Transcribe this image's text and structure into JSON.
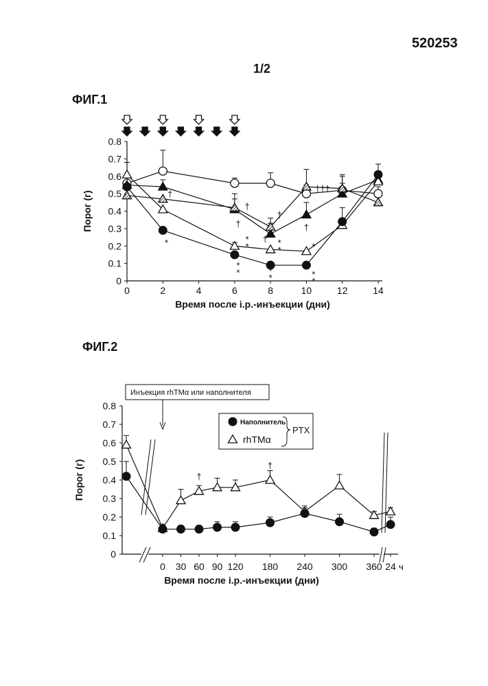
{
  "header": {
    "patent_number": "520253",
    "sheet": "1/2"
  },
  "chart_data": [
    {
      "figure_label": "ФИГ.1",
      "type": "line",
      "xlabel": "Время после i.p.-инъекции (дни)",
      "ylabel": "Порог (г)",
      "xlim": [
        0,
        14
      ],
      "ylim": [
        0,
        0.8
      ],
      "xticks": [
        0,
        2,
        4,
        6,
        8,
        10,
        12,
        14
      ],
      "yticks": [
        0,
        0.1,
        0.2,
        0.3,
        0.4,
        0.5,
        0.6,
        0.7,
        0.8
      ],
      "grid": false,
      "dosing_markers": {
        "open_arrow_days": [
          0,
          2,
          4,
          6
        ],
        "filled_arrow_days": [
          0,
          1,
          2,
          3,
          4,
          5,
          6
        ]
      },
      "series": [
        {
          "marker": "open-circle",
          "x": [
            0,
            2,
            6,
            8,
            10,
            12,
            14
          ],
          "y": [
            0.56,
            0.63,
            0.56,
            0.56,
            0.5,
            0.52,
            0.5
          ],
          "err": [
            0.0,
            0.12,
            0.03,
            0.06,
            0.05,
            0.04,
            0.04
          ]
        },
        {
          "marker": "filled-triangle",
          "x": [
            0,
            2,
            6,
            8,
            10,
            12,
            14
          ],
          "y": [
            0.55,
            0.54,
            0.41,
            0.27,
            0.38,
            0.5,
            0.58
          ],
          "err": [
            0.0,
            0.04,
            0.09,
            0.06,
            0.07,
            0.1,
            0.04
          ]
        },
        {
          "marker": "hatched-triangle",
          "x": [
            0,
            2,
            6,
            8,
            10,
            12,
            14
          ],
          "y": [
            0.49,
            0.47,
            0.42,
            0.31,
            0.54,
            0.53,
            0.45
          ],
          "err": [
            0.0,
            0.0,
            0.05,
            0.05,
            0.1,
            0.08,
            0.0
          ]
        },
        {
          "marker": "open-triangle",
          "x": [
            0,
            2,
            6,
            8,
            10,
            12,
            14
          ],
          "y": [
            0.61,
            0.41,
            0.2,
            0.18,
            0.17,
            0.32,
            0.57
          ],
          "err": [
            0.07,
            0.0,
            0.02,
            0.0,
            0.0,
            0.1,
            0.06
          ]
        },
        {
          "marker": "filled-circle",
          "x": [
            0,
            2,
            6,
            8,
            10,
            12,
            14
          ],
          "y": [
            0.54,
            0.29,
            0.15,
            0.09,
            0.09,
            0.34,
            0.61
          ],
          "err": [
            0.14,
            0.02,
            0.0,
            0.0,
            0.0,
            0.0,
            0.06
          ]
        }
      ],
      "annotations": [
        {
          "x": 2.4,
          "y": 0.5,
          "text": "†"
        },
        {
          "x": 2.2,
          "y": 0.22,
          "text": "*"
        },
        {
          "x": 6.7,
          "y": 0.43,
          "text": "†"
        },
        {
          "x": 6.2,
          "y": 0.33,
          "text": "†"
        },
        {
          "x": 6.7,
          "y": 0.2,
          "text": "*"
        },
        {
          "x": 6.7,
          "y": 0.24,
          "text": "*"
        },
        {
          "x": 6.2,
          "y": 0.05,
          "text": "*"
        },
        {
          "x": 6.2,
          "y": 0.09,
          "text": "*"
        },
        {
          "x": 7.7,
          "y": 0.24,
          "text": "†"
        },
        {
          "x": 8.5,
          "y": 0.38,
          "text": "†"
        },
        {
          "x": 8.5,
          "y": 0.18,
          "text": "*"
        },
        {
          "x": 8.5,
          "y": 0.22,
          "text": "*"
        },
        {
          "x": 8.0,
          "y": 0.02,
          "text": "*"
        },
        {
          "x": 8.0,
          "y": 0.06,
          "text": "*"
        },
        {
          "x": 8.0,
          "y": 0.1,
          "text": "*"
        },
        {
          "x": 10.9,
          "y": 0.53,
          "text": "†††"
        },
        {
          "x": 10.0,
          "y": 0.31,
          "text": "†"
        },
        {
          "x": 10.4,
          "y": 0.2,
          "text": "*"
        },
        {
          "x": 10.4,
          "y": 0.0,
          "text": "*"
        },
        {
          "x": 10.4,
          "y": 0.04,
          "text": "*"
        }
      ]
    },
    {
      "figure_label": "ФИГ.2",
      "type": "line",
      "xlabel": "Время после i.p.-инъекции (дни)",
      "ylabel": "Порог (г)",
      "ylim": [
        0,
        0.8
      ],
      "yticks": [
        0,
        0.1,
        0.2,
        0.3,
        0.4,
        0.5,
        0.6,
        0.7,
        0.8
      ],
      "xticks": [
        "0",
        "30",
        "60",
        "90",
        "120",
        "180",
        "240",
        "300",
        "360",
        "24"
      ],
      "x_unit_label": "ч",
      "grid": false,
      "injection_label": "Инъекция rhTMα  или наполнителя",
      "legend": {
        "placement": "top-right",
        "group_label": "PTX",
        "entries": [
          {
            "name": "Наполнитель",
            "marker": "filled-circle"
          },
          {
            "name": "rhTMα",
            "marker": "open-triangle"
          }
        ]
      },
      "series": [
        {
          "name": "rhTMα",
          "marker": "open-triangle",
          "x": [
            "pre",
            0,
            30,
            60,
            90,
            120,
            180,
            240,
            300,
            360,
            "24h"
          ],
          "y": [
            0.59,
            0.14,
            0.29,
            0.34,
            0.36,
            0.36,
            0.4,
            0.23,
            0.37,
            0.21,
            0.23
          ],
          "err": [
            0.05,
            0.02,
            0.06,
            0.03,
            0.05,
            0.04,
            0.05,
            0.03,
            0.06,
            0.02,
            0.02
          ]
        },
        {
          "name": "Наполнитель",
          "marker": "filled-circle",
          "x": [
            "pre",
            0,
            30,
            60,
            90,
            120,
            180,
            240,
            300,
            360,
            "24h"
          ],
          "y": [
            0.42,
            0.135,
            0.135,
            0.135,
            0.145,
            0.145,
            0.17,
            0.22,
            0.175,
            0.12,
            0.16
          ],
          "err": [
            0.08,
            0.02,
            0.02,
            0.02,
            0.03,
            0.03,
            0.03,
            0.03,
            0.04,
            0.02,
            0.04
          ]
        }
      ],
      "annotations": [
        {
          "x": 60,
          "y": 0.42,
          "text": "†"
        },
        {
          "x": 180,
          "y": 0.48,
          "text": "†"
        }
      ]
    }
  ]
}
